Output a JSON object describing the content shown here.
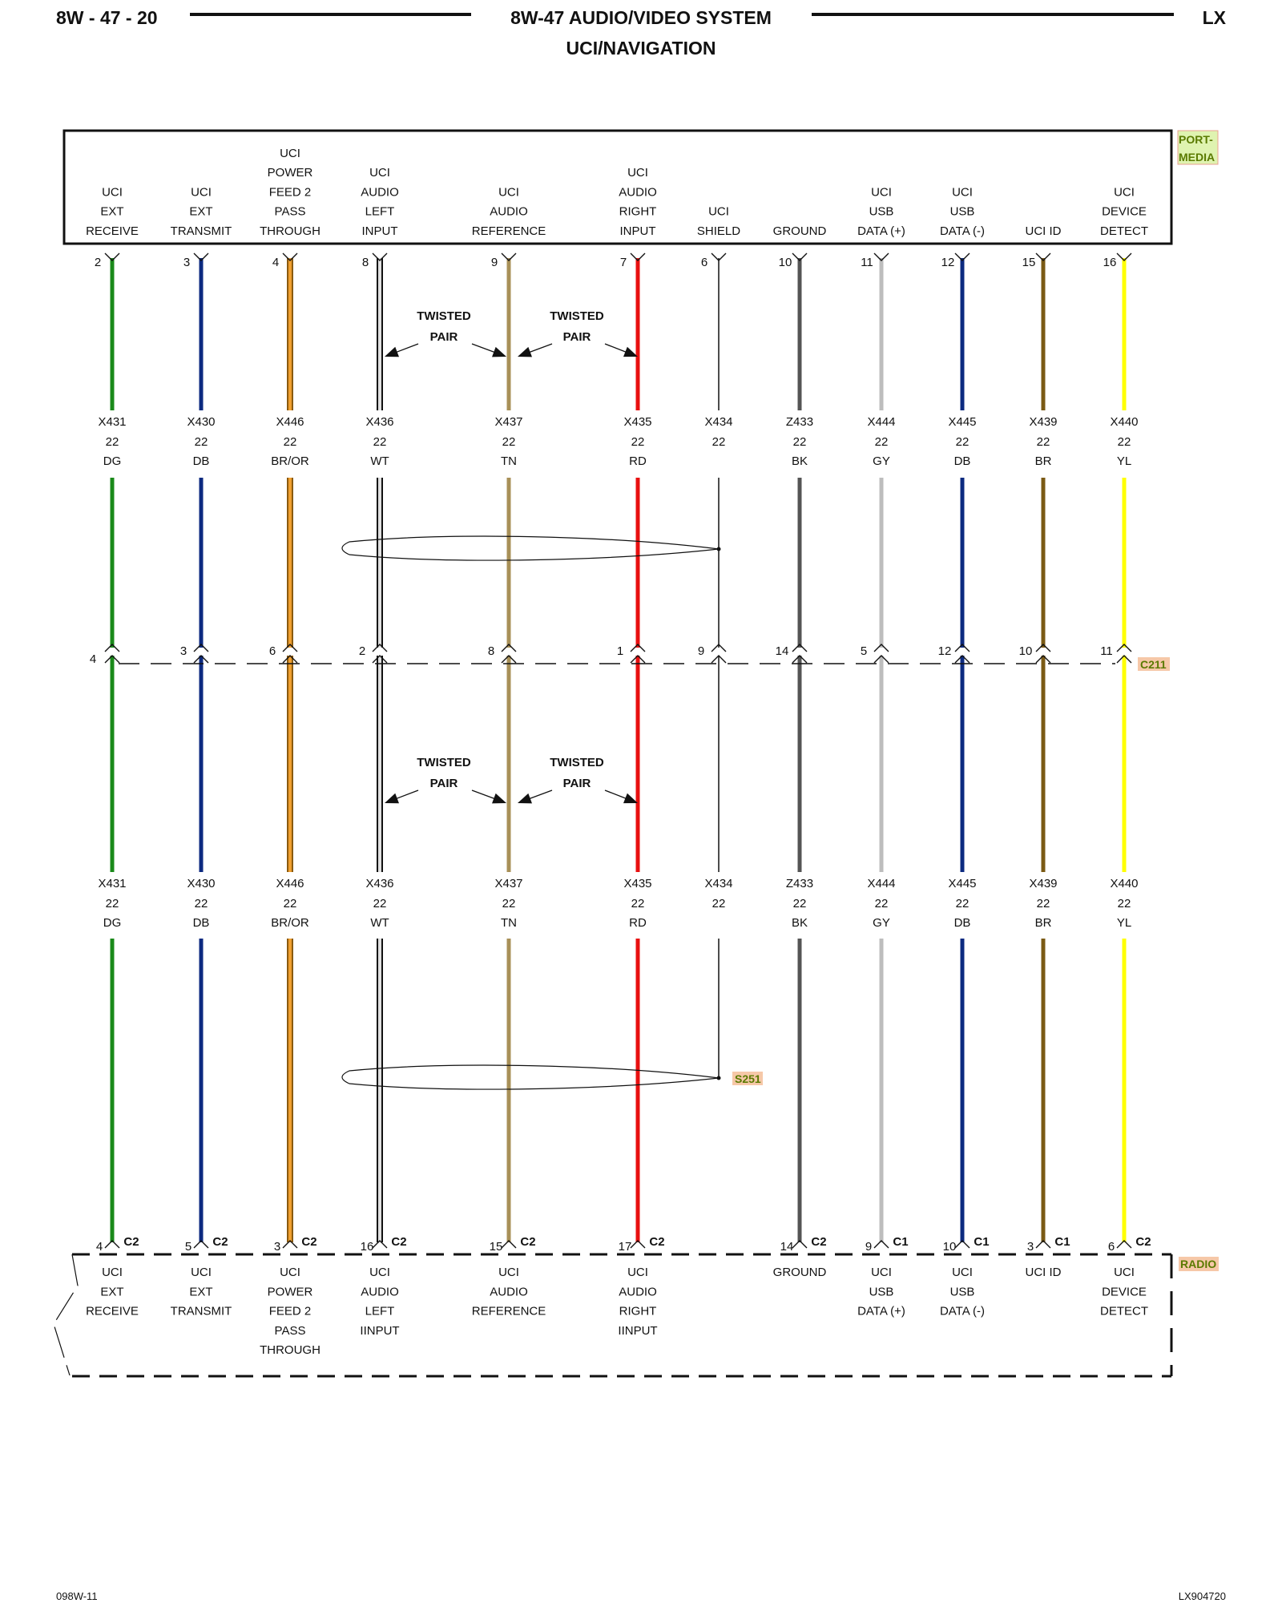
{
  "header": {
    "page_id": "8W - 47 - 20",
    "title": "8W-47 AUDIO/VIDEO SYSTEM",
    "subtitle": "UCI/NAVIGATION",
    "model": "LX"
  },
  "footer": {
    "left": "098W-11",
    "right": "LX904720"
  },
  "twisted_pair_label": [
    "TWISTED",
    "PAIR"
  ],
  "top_connector": {
    "name": "PORT-MEDIA",
    "name_lines": [
      "PORT-",
      "MEDIA"
    ],
    "pins": [
      {
        "pin": "2",
        "label": [
          "UCI",
          "EXT",
          "RECEIVE"
        ]
      },
      {
        "pin": "3",
        "label": [
          "UCI",
          "EXT",
          "TRANSMIT"
        ]
      },
      {
        "pin": "4",
        "label": [
          "UCI",
          "POWER",
          "FEED 2",
          "PASS",
          "THROUGH"
        ]
      },
      {
        "pin": "8",
        "label": [
          "UCI",
          "AUDIO",
          "LEFT",
          "INPUT"
        ]
      },
      {
        "pin": "9",
        "label": [
          "UCI",
          "AUDIO",
          "REFERENCE"
        ]
      },
      {
        "pin": "7",
        "label": [
          "UCI",
          "AUDIO",
          "RIGHT",
          "INPUT"
        ]
      },
      {
        "pin": "6",
        "label": [
          "UCI",
          "SHIELD"
        ]
      },
      {
        "pin": "10",
        "label": [
          "GROUND"
        ]
      },
      {
        "pin": "11",
        "label": [
          "UCI",
          "USB",
          "DATA (+)"
        ]
      },
      {
        "pin": "12",
        "label": [
          "UCI",
          "USB",
          "DATA (-)"
        ]
      },
      {
        "pin": "15",
        "label": [
          "UCI ID"
        ]
      },
      {
        "pin": "16",
        "label": [
          "UCI",
          "DEVICE",
          "DETECT"
        ]
      }
    ]
  },
  "wires": [
    {
      "circuit": "X431",
      "gauge": "22",
      "color_code": "DG",
      "color": "#1a8a1a"
    },
    {
      "circuit": "X430",
      "gauge": "22",
      "color_code": "DB",
      "color": "#0c2a80"
    },
    {
      "circuit": "X446",
      "gauge": "22",
      "color_code": "BR/OR",
      "color": "#f0a030",
      "stripe": "#8a5a10"
    },
    {
      "circuit": "X436",
      "gauge": "22",
      "color_code": "WT",
      "color": "#e0e0e0",
      "stripe": "#111111"
    },
    {
      "circuit": "X437",
      "gauge": "22",
      "color_code": "TN",
      "color": "#a89058"
    },
    {
      "circuit": "X435",
      "gauge": "22",
      "color_code": "RD",
      "color": "#e81010"
    },
    {
      "circuit": "X434",
      "gauge": "22",
      "color_code": "",
      "color": "#111111",
      "shield": true
    },
    {
      "circuit": "Z433",
      "gauge": "22",
      "color_code": "BK",
      "color": "#555555"
    },
    {
      "circuit": "X444",
      "gauge": "22",
      "color_code": "GY",
      "color": "#bdbdbd"
    },
    {
      "circuit": "X445",
      "gauge": "22",
      "color_code": "DB",
      "color": "#0c2a80"
    },
    {
      "circuit": "X439",
      "gauge": "22",
      "color_code": "BR",
      "color": "#7a5a14"
    },
    {
      "circuit": "X440",
      "gauge": "22",
      "color_code": "YL",
      "color": "#ffff00"
    }
  ],
  "inline_connector": {
    "name": "C211",
    "pins": [
      "4",
      "3",
      "6",
      "2",
      "8",
      "1",
      "9",
      "14",
      "5",
      "12",
      "10",
      "11"
    ]
  },
  "splice": {
    "name": "S251"
  },
  "bottom_connector": {
    "name": "RADIO",
    "pins": [
      {
        "pin": "4",
        "connector": "C2",
        "label": [
          "UCI",
          "EXT",
          "RECEIVE"
        ]
      },
      {
        "pin": "5",
        "connector": "C2",
        "label": [
          "UCI",
          "EXT",
          "TRANSMIT"
        ]
      },
      {
        "pin": "3",
        "connector": "C2",
        "label": [
          "UCI",
          "POWER",
          "FEED 2",
          "PASS",
          "THROUGH"
        ]
      },
      {
        "pin": "16",
        "connector": "C2",
        "label": [
          "UCI",
          "AUDIO",
          "LEFT",
          "IINPUT"
        ]
      },
      {
        "pin": "15",
        "connector": "C2",
        "label": [
          "UCI",
          "AUDIO",
          "REFERENCE"
        ]
      },
      {
        "pin": "17",
        "connector": "C2",
        "label": [
          "UCI",
          "AUDIO",
          "RIGHT",
          "IINPUT"
        ]
      },
      null,
      {
        "pin": "14",
        "connector": "C2",
        "label": [
          "GROUND"
        ]
      },
      {
        "pin": "9",
        "connector": "C1",
        "label": [
          "UCI",
          "USB",
          "DATA (+)"
        ]
      },
      {
        "pin": "10",
        "connector": "C1",
        "label": [
          "UCI",
          "USB",
          "DATA (-)"
        ]
      },
      {
        "pin": "3",
        "connector": "C1",
        "label": [
          "UCI ID"
        ]
      },
      {
        "pin": "6",
        "connector": "C2",
        "label": [
          "UCI",
          "DEVICE",
          "DETECT"
        ]
      }
    ]
  }
}
